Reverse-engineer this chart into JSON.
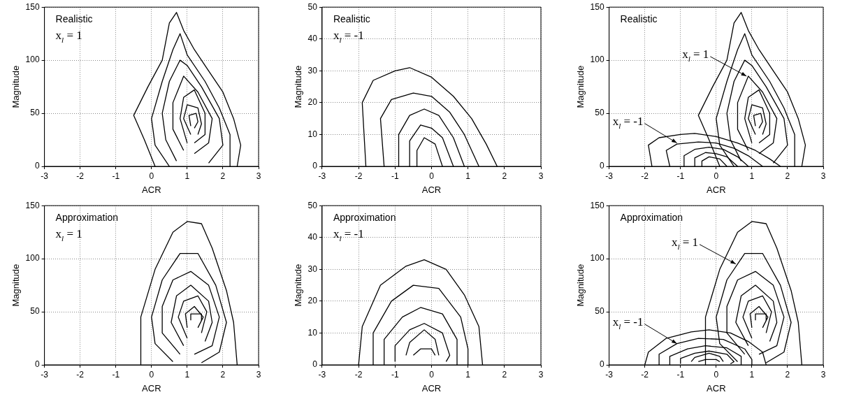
{
  "chart_data": [
    {
      "type": "line",
      "xlabel": "ACR",
      "ylabel": "Magnitude",
      "xlim": [
        -3,
        3
      ],
      "xticks": [
        -3,
        -2,
        -1,
        0,
        1,
        2,
        3
      ],
      "ylim": [
        0,
        150
      ],
      "yticks": [
        0,
        50,
        100,
        150
      ],
      "grid": true,
      "marker": "none",
      "annotations": [
        "Realistic",
        "x$_{l}$ = 1"
      ],
      "series": [
        {
          "color": "#000000",
          "x": [
            0.1,
            -0.2,
            -0.5,
            -0.1,
            0.3,
            0.5,
            0.7,
            0.9,
            1.2,
            1.6,
            2.0,
            2.3,
            2.5,
            2.4
          ],
          "values": [
            0,
            25,
            48,
            75,
            100,
            135,
            145,
            128,
            110,
            90,
            70,
            45,
            20,
            0
          ]
        },
        {
          "color": "#000000",
          "x": [
            0.5,
            0.1,
            0,
            0.3,
            0.6,
            0.8,
            1.0,
            1.5,
            1.9,
            2.2,
            2.2
          ],
          "values": [
            0,
            20,
            45,
            80,
            110,
            125,
            105,
            80,
            55,
            30,
            0
          ]
        },
        {
          "color": "#000000",
          "x": [
            0.7,
            0.4,
            0.3,
            0.5,
            0.8,
            1.0,
            1.4,
            1.9,
            2.0,
            1.6
          ],
          "values": [
            5,
            25,
            50,
            80,
            100,
            95,
            75,
            45,
            20,
            3
          ]
        },
        {
          "color": "#000000",
          "x": [
            0.9,
            0.6,
            0.6,
            0.9,
            1.3,
            1.7,
            1.6,
            1.2
          ],
          "values": [
            15,
            35,
            60,
            85,
            70,
            45,
            22,
            12
          ]
        },
        {
          "color": "#000000",
          "x": [
            1.0,
            0.8,
            0.9,
            1.2,
            1.5,
            1.5,
            1.2
          ],
          "values": [
            22,
            45,
            65,
            72,
            50,
            30,
            22
          ]
        },
        {
          "color": "#000000",
          "x": [
            1.1,
            0.9,
            1.0,
            1.3,
            1.4,
            1.3
          ],
          "values": [
            30,
            45,
            58,
            55,
            40,
            30
          ]
        },
        {
          "color": "#000000",
          "x": [
            1.1,
            1.05,
            1.25,
            1.3,
            1.2
          ],
          "values": [
            38,
            48,
            50,
            42,
            36
          ]
        }
      ]
    },
    {
      "type": "line",
      "xlabel": "ACR",
      "ylabel": "Magnitude",
      "xlim": [
        -3,
        3
      ],
      "xticks": [
        -3,
        -2,
        -1,
        0,
        1,
        2,
        3
      ],
      "ylim": [
        0,
        50
      ],
      "yticks": [
        0,
        10,
        20,
        30,
        40,
        50
      ],
      "grid": true,
      "marker": "none",
      "annotations": [
        "Realistic",
        "x$_{l}$ = -1"
      ],
      "series": [
        {
          "color": "#000000",
          "x": [
            -1.8,
            -1.9,
            -1.6,
            -1,
            -0.6,
            0,
            0.6,
            1.1,
            1.5,
            1.8
          ],
          "values": [
            0,
            20,
            27,
            30,
            31,
            28,
            22,
            15,
            7,
            0
          ]
        },
        {
          "color": "#000000",
          "x": [
            -1.3,
            -1.4,
            -1.1,
            -0.5,
            0,
            0.5,
            0.9,
            1.3
          ],
          "values": [
            0,
            15,
            21,
            23,
            22,
            17,
            10,
            0
          ]
        },
        {
          "color": "#000000",
          "x": [
            -0.9,
            -0.9,
            -0.6,
            -0.2,
            0.2,
            0.6,
            0.9
          ],
          "values": [
            0,
            10,
            16,
            18,
            16,
            9,
            0
          ]
        },
        {
          "color": "#000000",
          "x": [
            -0.6,
            -0.6,
            -0.3,
            0,
            0.3,
            0.6
          ],
          "values": [
            0,
            8,
            13,
            12,
            9,
            0
          ]
        },
        {
          "color": "#000000",
          "x": [
            -0.4,
            -0.4,
            -0.2,
            0.1,
            0.3
          ],
          "values": [
            0,
            5,
            9,
            7,
            0
          ]
        }
      ]
    },
    {
      "type": "line",
      "xlabel": "ACR",
      "ylabel": "Magnitude",
      "xlim": [
        -3,
        3
      ],
      "xticks": [
        -3,
        -2,
        -1,
        0,
        1,
        2,
        3
      ],
      "ylim": [
        0,
        150
      ],
      "yticks": [
        0,
        50,
        100,
        150
      ],
      "grid": true,
      "marker": "none",
      "annotations": [
        "Realistic",
        {
          "text": "x$_{l}$ = 1",
          "x": 0.85,
          "y": 85
        },
        {
          "text": "x$_{l}$ = -1",
          "x": -1.1,
          "y": 22
        }
      ],
      "series": [
        {
          "color": "#000000",
          "x": [
            0.1,
            -0.2,
            -0.5,
            -0.1,
            0.3,
            0.5,
            0.7,
            0.9,
            1.2,
            1.6,
            2.0,
            2.3,
            2.5,
            2.4
          ],
          "values": [
            0,
            25,
            48,
            75,
            100,
            135,
            145,
            128,
            110,
            90,
            70,
            45,
            20,
            0
          ]
        },
        {
          "color": "#000000",
          "x": [
            0.5,
            0.1,
            0,
            0.3,
            0.6,
            0.8,
            1.0,
            1.5,
            1.9,
            2.2,
            2.2
          ],
          "values": [
            0,
            20,
            45,
            80,
            110,
            125,
            105,
            80,
            55,
            30,
            0
          ]
        },
        {
          "color": "#000000",
          "x": [
            0.7,
            0.4,
            0.3,
            0.5,
            0.8,
            1.0,
            1.4,
            1.9,
            2.0,
            1.6
          ],
          "values": [
            5,
            25,
            50,
            80,
            100,
            95,
            75,
            45,
            20,
            3
          ]
        },
        {
          "color": "#000000",
          "x": [
            0.9,
            0.6,
            0.6,
            0.9,
            1.3,
            1.7,
            1.6,
            1.2
          ],
          "values": [
            15,
            35,
            60,
            85,
            70,
            45,
            22,
            12
          ]
        },
        {
          "color": "#000000",
          "x": [
            1.0,
            0.8,
            0.9,
            1.2,
            1.5,
            1.5,
            1.2
          ],
          "values": [
            22,
            45,
            65,
            72,
            50,
            30,
            22
          ]
        },
        {
          "color": "#000000",
          "x": [
            1.1,
            0.9,
            1.0,
            1.3,
            1.4,
            1.3
          ],
          "values": [
            30,
            45,
            58,
            55,
            40,
            30
          ]
        },
        {
          "color": "#000000",
          "x": [
            1.1,
            1.05,
            1.25,
            1.3,
            1.2
          ],
          "values": [
            38,
            48,
            50,
            42,
            36
          ]
        },
        {
          "color": "#000000",
          "x": [
            -1.8,
            -1.9,
            -1.6,
            -1,
            -0.6,
            0,
            0.6,
            1.1,
            1.5,
            1.8
          ],
          "values": [
            0,
            20,
            27,
            30,
            31,
            28,
            22,
            15,
            7,
            0
          ]
        },
        {
          "color": "#000000",
          "x": [
            -1.3,
            -1.4,
            -1.1,
            -0.5,
            0,
            0.5,
            0.9,
            1.3
          ],
          "values": [
            0,
            15,
            21,
            23,
            22,
            17,
            10,
            0
          ]
        },
        {
          "color": "#000000",
          "x": [
            -0.9,
            -0.9,
            -0.6,
            -0.2,
            0.2,
            0.6,
            0.9
          ],
          "values": [
            0,
            10,
            16,
            18,
            16,
            9,
            0
          ]
        },
        {
          "color": "#000000",
          "x": [
            -0.6,
            -0.6,
            -0.3,
            0,
            0.3,
            0.6
          ],
          "values": [
            0,
            8,
            13,
            12,
            9,
            0
          ]
        },
        {
          "color": "#000000",
          "x": [
            -0.4,
            -0.4,
            -0.2,
            0.1,
            0.3
          ],
          "values": [
            0,
            5,
            9,
            7,
            0
          ]
        }
      ]
    },
    {
      "type": "line",
      "xlabel": "ACR",
      "ylabel": "Magnitude",
      "xlim": [
        -3,
        3
      ],
      "xticks": [
        -3,
        -2,
        -1,
        0,
        1,
        2,
        3
      ],
      "ylim": [
        0,
        150
      ],
      "yticks": [
        0,
        50,
        100,
        150
      ],
      "grid": true,
      "marker": "none",
      "annotations": [
        "Approximation",
        "x$_{l}$ = 1"
      ],
      "series": [
        {
          "color": "#000000",
          "x": [
            -0.3,
            -0.3,
            0.1,
            0.6,
            1.0,
            1.4,
            1.7,
            2.1,
            2.3,
            2.4
          ],
          "values": [
            0,
            45,
            90,
            125,
            135,
            133,
            110,
            70,
            40,
            0
          ]
        },
        {
          "color": "#000000",
          "x": [
            0.6,
            0.1,
            0,
            0.3,
            0.8,
            1.3,
            1.8,
            2.1,
            1.9,
            1.4
          ],
          "values": [
            3,
            20,
            45,
            80,
            105,
            105,
            75,
            40,
            12,
            2
          ]
        },
        {
          "color": "#000000",
          "x": [
            0.8,
            0.3,
            0.3,
            0.6,
            1.1,
            1.6,
            1.9,
            1.7,
            1.2
          ],
          "values": [
            10,
            30,
            55,
            80,
            88,
            75,
            45,
            18,
            10
          ]
        },
        {
          "color": "#000000",
          "x": [
            0.9,
            0.55,
            0.7,
            1.1,
            1.6,
            1.7,
            1.5
          ],
          "values": [
            18,
            40,
            65,
            75,
            60,
            40,
            22
          ]
        },
        {
          "color": "#000000",
          "x": [
            1.0,
            0.75,
            0.9,
            1.3,
            1.55,
            1.4
          ],
          "values": [
            25,
            45,
            60,
            65,
            50,
            30
          ]
        },
        {
          "color": "#000000",
          "x": [
            1.0,
            0.95,
            1.2,
            1.45,
            1.3
          ],
          "values": [
            35,
            48,
            55,
            45,
            35
          ]
        },
        {
          "color": "#000000",
          "x": [
            1.1,
            1.1,
            1.4,
            1.4
          ],
          "values": [
            42,
            48,
            48,
            42
          ]
        }
      ]
    },
    {
      "type": "line",
      "xlabel": "ACR",
      "ylabel": "Magnitude",
      "xlim": [
        -3,
        3
      ],
      "xticks": [
        -3,
        -2,
        -1,
        0,
        1,
        2,
        3
      ],
      "ylim": [
        0,
        50
      ],
      "yticks": [
        0,
        10,
        20,
        30,
        40,
        50
      ],
      "grid": true,
      "marker": "none",
      "annotations": [
        "Approximation",
        "x$_{l}$ = -1"
      ],
      "series": [
        {
          "color": "#000000",
          "x": [
            -2,
            -1.9,
            -1.4,
            -0.7,
            -0.2,
            0.4,
            0.9,
            1.3,
            1.4
          ],
          "values": [
            0,
            12,
            25,
            31,
            33,
            30,
            22,
            12,
            0
          ]
        },
        {
          "color": "#000000",
          "x": [
            -1.6,
            -1.6,
            -1.1,
            -0.5,
            0.2,
            0.8,
            1.0,
            1.0
          ],
          "values": [
            0,
            10,
            20,
            25,
            24,
            15,
            5,
            0
          ]
        },
        {
          "color": "#000000",
          "x": [
            -1.3,
            -1.3,
            -0.8,
            -0.3,
            0.3,
            0.7,
            0.7
          ],
          "values": [
            0,
            8,
            15,
            18,
            16,
            8,
            0
          ]
        },
        {
          "color": "#000000",
          "x": [
            -1.0,
            -1.0,
            -0.6,
            -0.2,
            0.3,
            0.5,
            0.4
          ],
          "values": [
            1,
            6,
            11,
            13,
            10,
            3,
            1
          ]
        },
        {
          "color": "#000000",
          "x": [
            -0.7,
            -0.6,
            -0.2,
            0.1,
            0.2
          ],
          "values": [
            3,
            7,
            11,
            8,
            3
          ]
        },
        {
          "color": "#000000",
          "x": [
            -0.5,
            -0.3,
            0,
            0.1
          ],
          "values": [
            3,
            5,
            5,
            3
          ]
        }
      ]
    },
    {
      "type": "line",
      "xlabel": "ACR",
      "ylabel": "Magnitude",
      "xlim": [
        -3,
        3
      ],
      "xticks": [
        -3,
        -2,
        -1,
        0,
        1,
        2,
        3
      ],
      "ylim": [
        0,
        150
      ],
      "yticks": [
        0,
        50,
        100,
        150
      ],
      "grid": true,
      "marker": "none",
      "annotations": [
        "Approximation",
        {
          "text": "x$_{l}$ = 1",
          "x": 0.55,
          "y": 95
        },
        {
          "text": "x$_{l}$ = -1",
          "x": -1.1,
          "y": 20
        }
      ],
      "series": [
        {
          "color": "#000000",
          "x": [
            -0.3,
            -0.3,
            0.1,
            0.6,
            1.0,
            1.4,
            1.7,
            2.1,
            2.3,
            2.4
          ],
          "values": [
            0,
            45,
            90,
            125,
            135,
            133,
            110,
            70,
            40,
            0
          ]
        },
        {
          "color": "#000000",
          "x": [
            0.6,
            0.1,
            0,
            0.3,
            0.8,
            1.3,
            1.8,
            2.1,
            1.9,
            1.4
          ],
          "values": [
            3,
            20,
            45,
            80,
            105,
            105,
            75,
            40,
            12,
            2
          ]
        },
        {
          "color": "#000000",
          "x": [
            0.8,
            0.3,
            0.3,
            0.6,
            1.1,
            1.6,
            1.9,
            1.7,
            1.2
          ],
          "values": [
            10,
            30,
            55,
            80,
            88,
            75,
            45,
            18,
            10
          ]
        },
        {
          "color": "#000000",
          "x": [
            0.9,
            0.55,
            0.7,
            1.1,
            1.6,
            1.7,
            1.5
          ],
          "values": [
            18,
            40,
            65,
            75,
            60,
            40,
            22
          ]
        },
        {
          "color": "#000000",
          "x": [
            1.0,
            0.75,
            0.9,
            1.3,
            1.55,
            1.4
          ],
          "values": [
            25,
            45,
            60,
            65,
            50,
            30
          ]
        },
        {
          "color": "#000000",
          "x": [
            1.0,
            0.95,
            1.2,
            1.45,
            1.3
          ],
          "values": [
            35,
            48,
            55,
            45,
            35
          ]
        },
        {
          "color": "#000000",
          "x": [
            1.1,
            1.1,
            1.4,
            1.4
          ],
          "values": [
            42,
            48,
            48,
            42
          ]
        },
        {
          "color": "#000000",
          "x": [
            -2,
            -1.9,
            -1.4,
            -0.7,
            -0.2,
            0.4,
            0.9,
            1.3,
            1.4
          ],
          "values": [
            0,
            12,
            25,
            31,
            33,
            30,
            22,
            12,
            0
          ]
        },
        {
          "color": "#000000",
          "x": [
            -1.6,
            -1.6,
            -1.1,
            -0.5,
            0.2,
            0.8,
            1.0,
            1.0
          ],
          "values": [
            0,
            10,
            20,
            25,
            24,
            15,
            5,
            0
          ]
        },
        {
          "color": "#000000",
          "x": [
            -1.3,
            -1.3,
            -0.8,
            -0.3,
            0.3,
            0.7,
            0.7
          ],
          "values": [
            0,
            8,
            15,
            18,
            16,
            8,
            0
          ]
        },
        {
          "color": "#000000",
          "x": [
            -1.0,
            -1.0,
            -0.6,
            -0.2,
            0.3,
            0.5,
            0.4
          ],
          "values": [
            1,
            6,
            11,
            13,
            10,
            3,
            1
          ]
        },
        {
          "color": "#000000",
          "x": [
            -0.7,
            -0.6,
            -0.2,
            0.1,
            0.2
          ],
          "values": [
            3,
            7,
            11,
            8,
            3
          ]
        },
        {
          "color": "#000000",
          "x": [
            -0.5,
            -0.3,
            0,
            0.1
          ],
          "values": [
            3,
            5,
            5,
            3
          ]
        }
      ]
    }
  ]
}
